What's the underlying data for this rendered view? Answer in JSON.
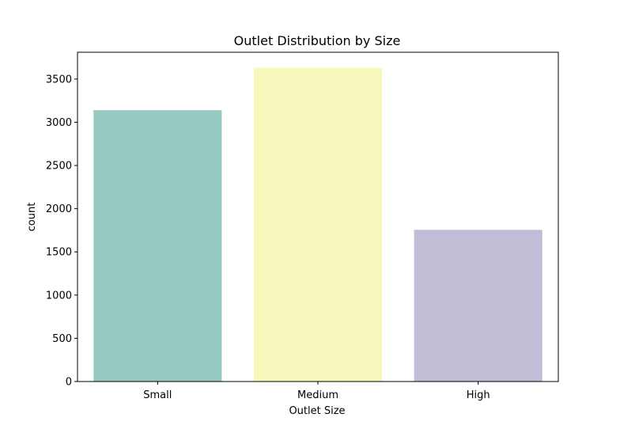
{
  "chart_data": {
    "type": "bar",
    "title": "Outlet Distribution by Size",
    "xlabel": "Outlet Size",
    "ylabel": "count",
    "categories": [
      "Small",
      "Medium",
      "High"
    ],
    "values": [
      3140,
      3630,
      1755
    ],
    "colors": [
      "#98c9c1",
      "#f7f6bb",
      "#c1bdd7"
    ],
    "ylim": [
      0,
      3810
    ],
    "yticks": [
      0,
      500,
      1000,
      1500,
      2000,
      2500,
      3000,
      3500
    ],
    "grid": false,
    "legend": "none"
  }
}
